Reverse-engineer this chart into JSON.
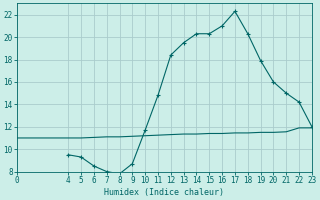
{
  "xlabel": "Humidex (Indice chaleur)",
  "bg_color": "#cceee8",
  "grid_color": "#aacccc",
  "line_color": "#006666",
  "x_main": [
    4,
    5,
    6,
    7,
    8,
    9,
    10,
    11,
    12,
    13,
    14,
    15,
    16,
    17,
    18,
    19,
    20,
    21,
    22,
    23
  ],
  "y_main": [
    9.5,
    9.3,
    8.5,
    8.0,
    7.8,
    8.7,
    11.7,
    14.8,
    18.4,
    19.5,
    20.3,
    20.3,
    21.0,
    22.3,
    20.3,
    17.9,
    16.0,
    15.0,
    14.2,
    12.0
  ],
  "x_flat": [
    0,
    4,
    5,
    6,
    7,
    8,
    9,
    10,
    11,
    12,
    13,
    14,
    15,
    16,
    17,
    18,
    19,
    20,
    21,
    22,
    23
  ],
  "y_flat": [
    11.0,
    11.0,
    11.0,
    11.05,
    11.1,
    11.1,
    11.15,
    11.2,
    11.25,
    11.3,
    11.35,
    11.35,
    11.4,
    11.4,
    11.45,
    11.45,
    11.5,
    11.5,
    11.55,
    11.9,
    11.9
  ],
  "xlim": [
    0,
    23
  ],
  "ylim": [
    8,
    23
  ],
  "yticks": [
    8,
    10,
    12,
    14,
    16,
    18,
    20,
    22
  ],
  "xticks": [
    0,
    4,
    5,
    6,
    7,
    8,
    9,
    10,
    11,
    12,
    13,
    14,
    15,
    16,
    17,
    18,
    19,
    20,
    21,
    22,
    23
  ],
  "xlabel_fontsize": 6.0,
  "tick_fontsize": 5.5
}
